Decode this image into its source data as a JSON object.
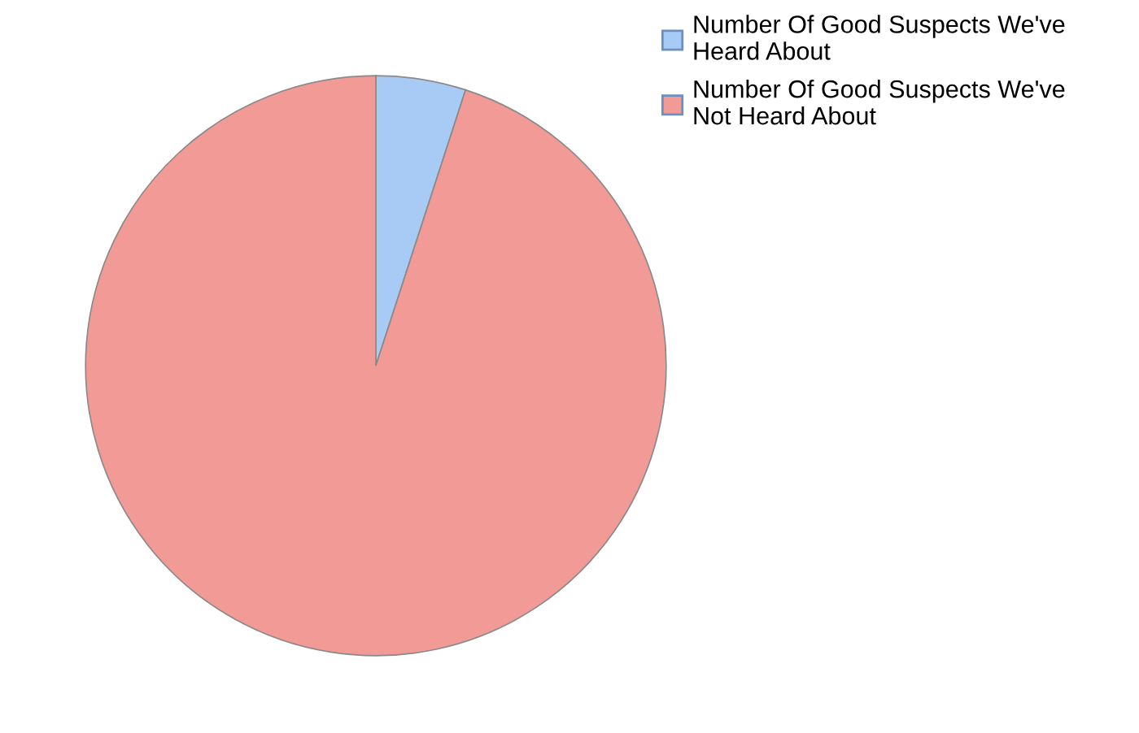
{
  "chart_data": {
    "type": "pie",
    "categories": [
      "Number Of Good Suspects We've Heard About",
      "Number Of Good Suspects We've Not Heard About"
    ],
    "values": [
      5,
      95
    ],
    "colors": [
      "#a8cbf5",
      "#f29a96"
    ],
    "legend": "top right"
  }
}
